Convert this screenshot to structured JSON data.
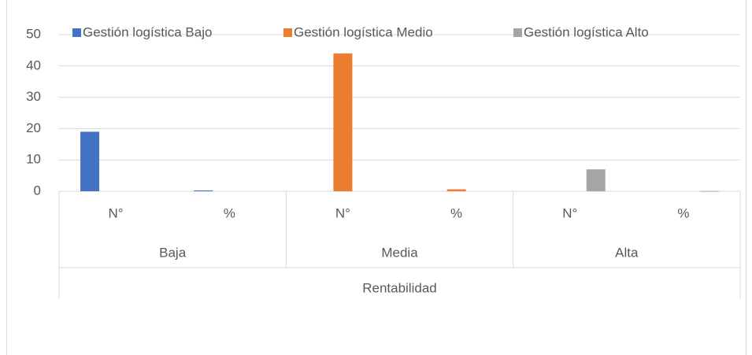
{
  "chart_data": {
    "type": "bar",
    "categories": [
      "N°",
      "%",
      "N°",
      "%",
      "N°",
      "%"
    ],
    "group_labels": [
      "Baja",
      "Media",
      "Alta"
    ],
    "x_label": "Rentabilidad",
    "series": [
      {
        "name": "Gestión logística  Bajo",
        "color": "#4472c4",
        "values": [
          19,
          0.27,
          null,
          null,
          null,
          null
        ]
      },
      {
        "name": "Gestión logística  Medio",
        "color": "#ed7d31",
        "values": [
          null,
          null,
          44,
          0.63,
          null,
          null
        ]
      },
      {
        "name": "Gestión logística  Alto",
        "color": "#a5a5a5",
        "values": [
          null,
          null,
          null,
          null,
          7,
          0.1
        ]
      }
    ],
    "ylim": [
      0,
      50
    ],
    "yticks": [
      0,
      10,
      20,
      30,
      40,
      50
    ],
    "grid": true,
    "legend": "top"
  }
}
